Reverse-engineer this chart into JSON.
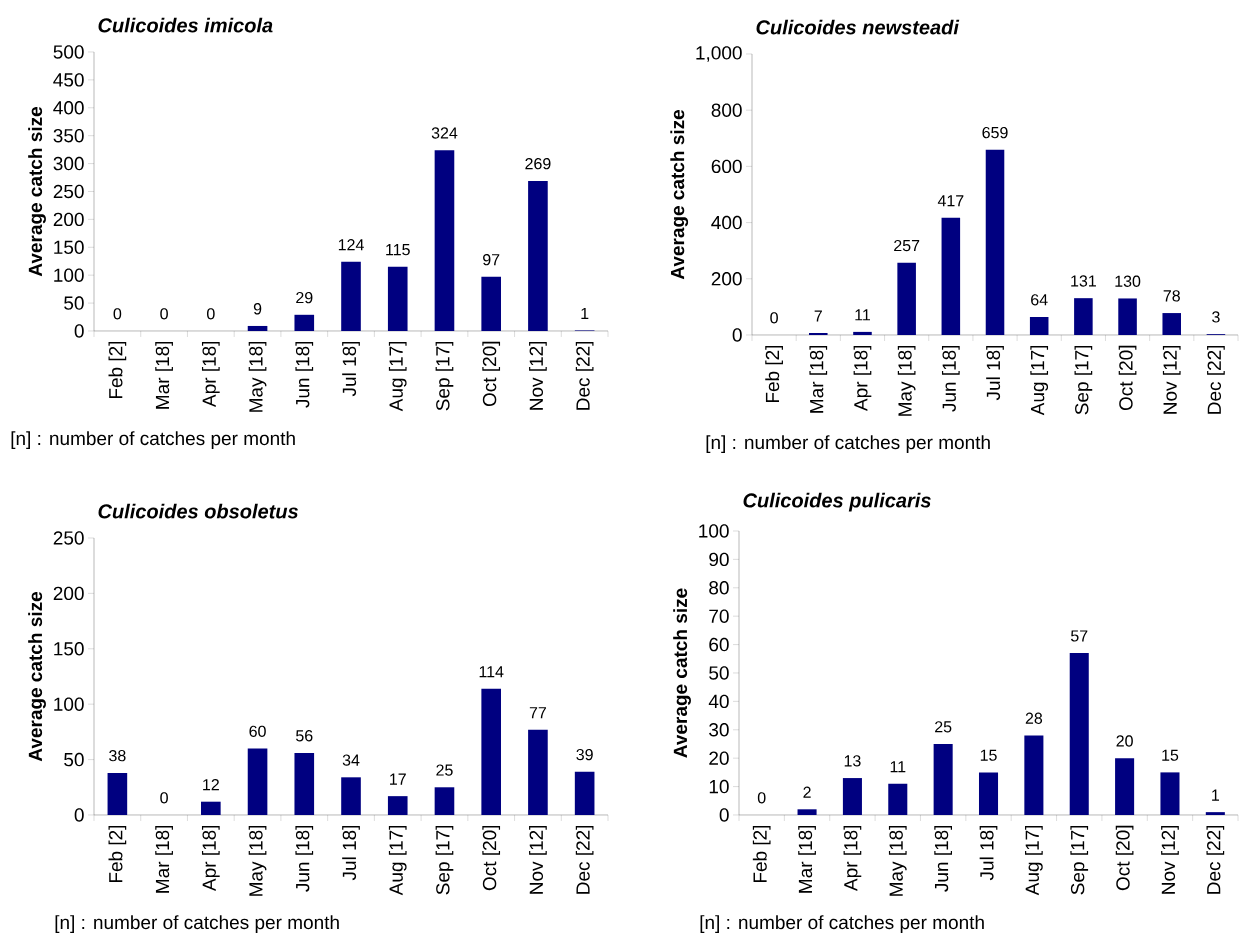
{
  "chart_data": [
    {
      "type": "bar",
      "title": "Culicoides imicola",
      "ylabel": "Average catch size",
      "categories": [
        "Feb [2]",
        "Mar [18]",
        "Apr [18]",
        "May [18]",
        "Jun [18]",
        "Jul 18]",
        "Aug [17]",
        "Sep [17]",
        "Oct [20]",
        "Nov [12]",
        "Dec [22]"
      ],
      "values": [
        0,
        0,
        0,
        9,
        29,
        124,
        115,
        324,
        97,
        269,
        1
      ],
      "color": "#000080",
      "ylim": [
        0,
        500
      ],
      "yticks": [
        0,
        50,
        100,
        150,
        200,
        250,
        300,
        350,
        400,
        450,
        500
      ],
      "data_labels": true,
      "annotations": [
        "[n] : number of catches per month"
      ]
    },
    {
      "type": "bar",
      "title": "Culicoides newsteadi",
      "ylabel": "Average catch size",
      "categories": [
        "Feb [2]",
        "Mar [18]",
        "Apr [18]",
        "May [18]",
        "Jun [18]",
        "Jul 18]",
        "Aug [17]",
        "Sep [17]",
        "Oct [20]",
        "Nov [12]",
        "Dec [22]"
      ],
      "values": [
        0,
        7,
        11,
        257,
        417,
        659,
        64,
        131,
        130,
        78,
        3
      ],
      "color": "#000080",
      "ylim": [
        0,
        1000
      ],
      "yticks": [
        0,
        200,
        400,
        600,
        800,
        {
          "value": 1000,
          "label": "1,000"
        }
      ],
      "data_labels": true,
      "annotations": [
        "[n] : number of catches per month"
      ]
    },
    {
      "type": "bar",
      "title": "Culicoides obsoletus",
      "ylabel": "Average catch size",
      "categories": [
        "Feb [2]",
        "Mar [18]",
        "Apr [18]",
        "May [18]",
        "Jun [18]",
        "Jul 18]",
        "Aug [17]",
        "Sep [17]",
        "Oct [20]",
        "Nov [12]",
        "Dec [22]"
      ],
      "values": [
        38,
        0,
        12,
        60,
        56,
        34,
        17,
        25,
        114,
        77,
        39
      ],
      "color": "#000080",
      "ylim": [
        0,
        250
      ],
      "yticks": [
        0,
        50,
        100,
        150,
        200,
        250
      ],
      "data_labels": true,
      "annotations": [
        "[n] : number of catches per month"
      ]
    },
    {
      "type": "bar",
      "title": "Culicoides pulicaris",
      "ylabel": "Average catch size",
      "categories": [
        "Feb [2]",
        "Mar [18]",
        "Apr [18]",
        "May [18]",
        "Jun [18]",
        "Jul 18]",
        "Aug [17]",
        "Sep [17]",
        "Oct [20]",
        "Nov [12]",
        "Dec [22]"
      ],
      "values": [
        0,
        2,
        13,
        11,
        25,
        15,
        28,
        57,
        20,
        15,
        1
      ],
      "color": "#000080",
      "ylim": [
        0,
        100
      ],
      "yticks": [
        0,
        10,
        20,
        30,
        40,
        50,
        60,
        70,
        80,
        90,
        100
      ],
      "data_labels": true,
      "annotations": [
        "[n] : number of catches per month"
      ]
    }
  ]
}
